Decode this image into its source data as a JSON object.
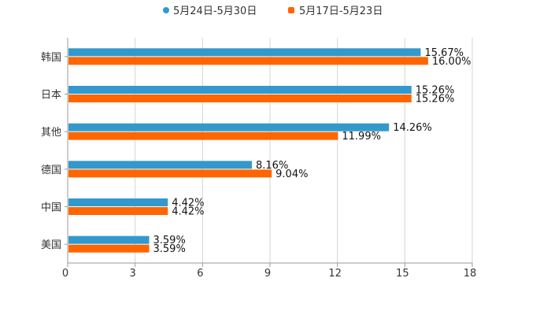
{
  "chart_data": {
    "type": "bar",
    "orientation": "horizontal",
    "categories": [
      "韩国",
      "日本",
      "其他",
      "德国",
      "中国",
      "美国"
    ],
    "series": [
      {
        "name": "5月24日-5月30日",
        "color": "#3399cc",
        "values": [
          15.67,
          15.26,
          14.26,
          8.16,
          4.42,
          3.59
        ],
        "labels": [
          "15.67%",
          "15.26%",
          "14.26%",
          "8.16%",
          "4.42%",
          "3.59%"
        ]
      },
      {
        "name": "5月17日-5月23日",
        "color": "#ff6600",
        "values": [
          16.0,
          15.26,
          11.99,
          9.04,
          4.42,
          3.59
        ],
        "labels": [
          "16.00%",
          "15.26%",
          "11.99%",
          "9.04%",
          "4.42%",
          "3.59%"
        ]
      }
    ],
    "xlim": [
      0,
      18
    ],
    "xticks": [
      "0",
      "3",
      "6",
      "9",
      "12",
      "15",
      "18"
    ],
    "grid": true,
    "legend_position": "top-center",
    "title": "",
    "xlabel": "",
    "ylabel": ""
  }
}
